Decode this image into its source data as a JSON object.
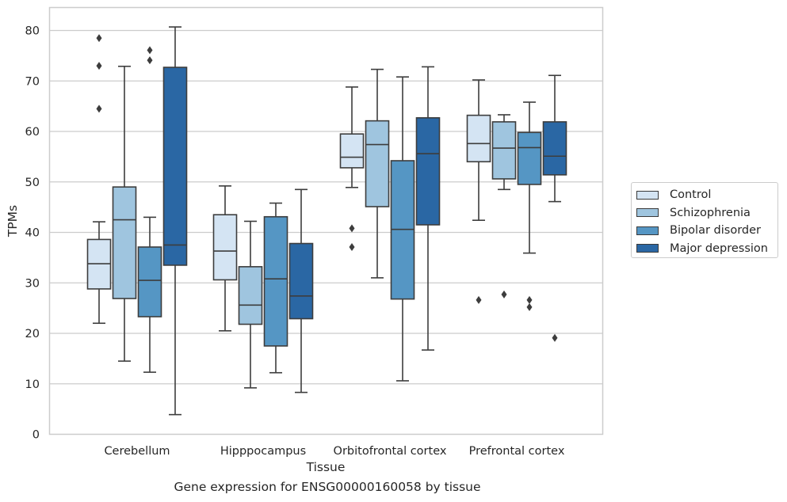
{
  "chart_data": {
    "type": "box",
    "xlabel": "Tissue",
    "ylabel": "TPMs",
    "ylim": [
      0,
      85
    ],
    "yticks": [
      0,
      10,
      20,
      30,
      40,
      50,
      60,
      70,
      80
    ],
    "grid": true,
    "legend_position": "right",
    "caption": "Gene expression for ENSG00000160058 by tissue",
    "categories": [
      "Cerebellum",
      "Hipppocampus",
      "Orbitofrontal cortex",
      "Prefrontal cortex"
    ],
    "series": [
      {
        "name": "Control",
        "color": "#d4e4f3",
        "boxes": [
          {
            "whisker_low": 22,
            "q1": 28.8,
            "median": 33.8,
            "q3": 38.6,
            "whisker_high": 42.1,
            "outliers": [
              78.5,
              73,
              64.5
            ]
          },
          {
            "whisker_low": 20.5,
            "q1": 30.6,
            "median": 36.3,
            "q3": 43.5,
            "whisker_high": 49.2,
            "outliers": []
          },
          {
            "whisker_low": 48.9,
            "q1": 52.8,
            "median": 54.9,
            "q3": 59.5,
            "whisker_high": 68.8,
            "outliers": [
              40.8,
              37.1
            ]
          },
          {
            "whisker_low": 42.4,
            "q1": 54.0,
            "median": 57.6,
            "q3": 63.2,
            "whisker_high": 70.2,
            "outliers": [
              26.6
            ]
          }
        ]
      },
      {
        "name": "Schizophrenia",
        "color": "#9fc5df",
        "boxes": [
          {
            "whisker_low": 14.5,
            "q1": 26.9,
            "median": 42.5,
            "q3": 49.0,
            "whisker_high": 72.9,
            "outliers": []
          },
          {
            "whisker_low": 9.2,
            "q1": 21.8,
            "median": 25.6,
            "q3": 33.2,
            "whisker_high": 42.2,
            "outliers": []
          },
          {
            "whisker_low": 31.0,
            "q1": 45.1,
            "median": 57.4,
            "q3": 62.1,
            "whisker_high": 72.3,
            "outliers": []
          },
          {
            "whisker_low": 48.5,
            "q1": 50.6,
            "median": 56.7,
            "q3": 61.9,
            "whisker_high": 63.3,
            "outliers": [
              27.7
            ]
          }
        ]
      },
      {
        "name": "Bipolar disorder",
        "color": "#5596c4",
        "boxes": [
          {
            "whisker_low": 12.3,
            "q1": 23.3,
            "median": 30.5,
            "q3": 37.1,
            "whisker_high": 43.0,
            "outliers": [
              76.1,
              74.1
            ]
          },
          {
            "whisker_low": 12.2,
            "q1": 17.5,
            "median": 30.8,
            "q3": 43.1,
            "whisker_high": 45.8,
            "outliers": []
          },
          {
            "whisker_low": 10.6,
            "q1": 26.8,
            "median": 40.6,
            "q3": 54.2,
            "whisker_high": 70.8,
            "outliers": []
          },
          {
            "whisker_low": 35.9,
            "q1": 49.5,
            "median": 56.8,
            "q3": 59.8,
            "whisker_high": 65.8,
            "outliers": [
              26.6,
              25.2
            ]
          }
        ]
      },
      {
        "name": "Major depression",
        "color": "#2a67a4",
        "boxes": [
          {
            "whisker_low": 3.9,
            "q1": 33.5,
            "median": 37.5,
            "q3": 72.7,
            "whisker_high": 80.7,
            "outliers": []
          },
          {
            "whisker_low": 8.3,
            "q1": 22.9,
            "median": 27.4,
            "q3": 37.8,
            "whisker_high": 48.5,
            "outliers": []
          },
          {
            "whisker_low": 16.7,
            "q1": 41.5,
            "median": 55.6,
            "q3": 62.7,
            "whisker_high": 72.8,
            "outliers": []
          },
          {
            "whisker_low": 46.1,
            "q1": 51.4,
            "median": 55.1,
            "q3": 61.9,
            "whisker_high": 71.1,
            "outliers": [
              19.1
            ]
          }
        ]
      }
    ]
  }
}
